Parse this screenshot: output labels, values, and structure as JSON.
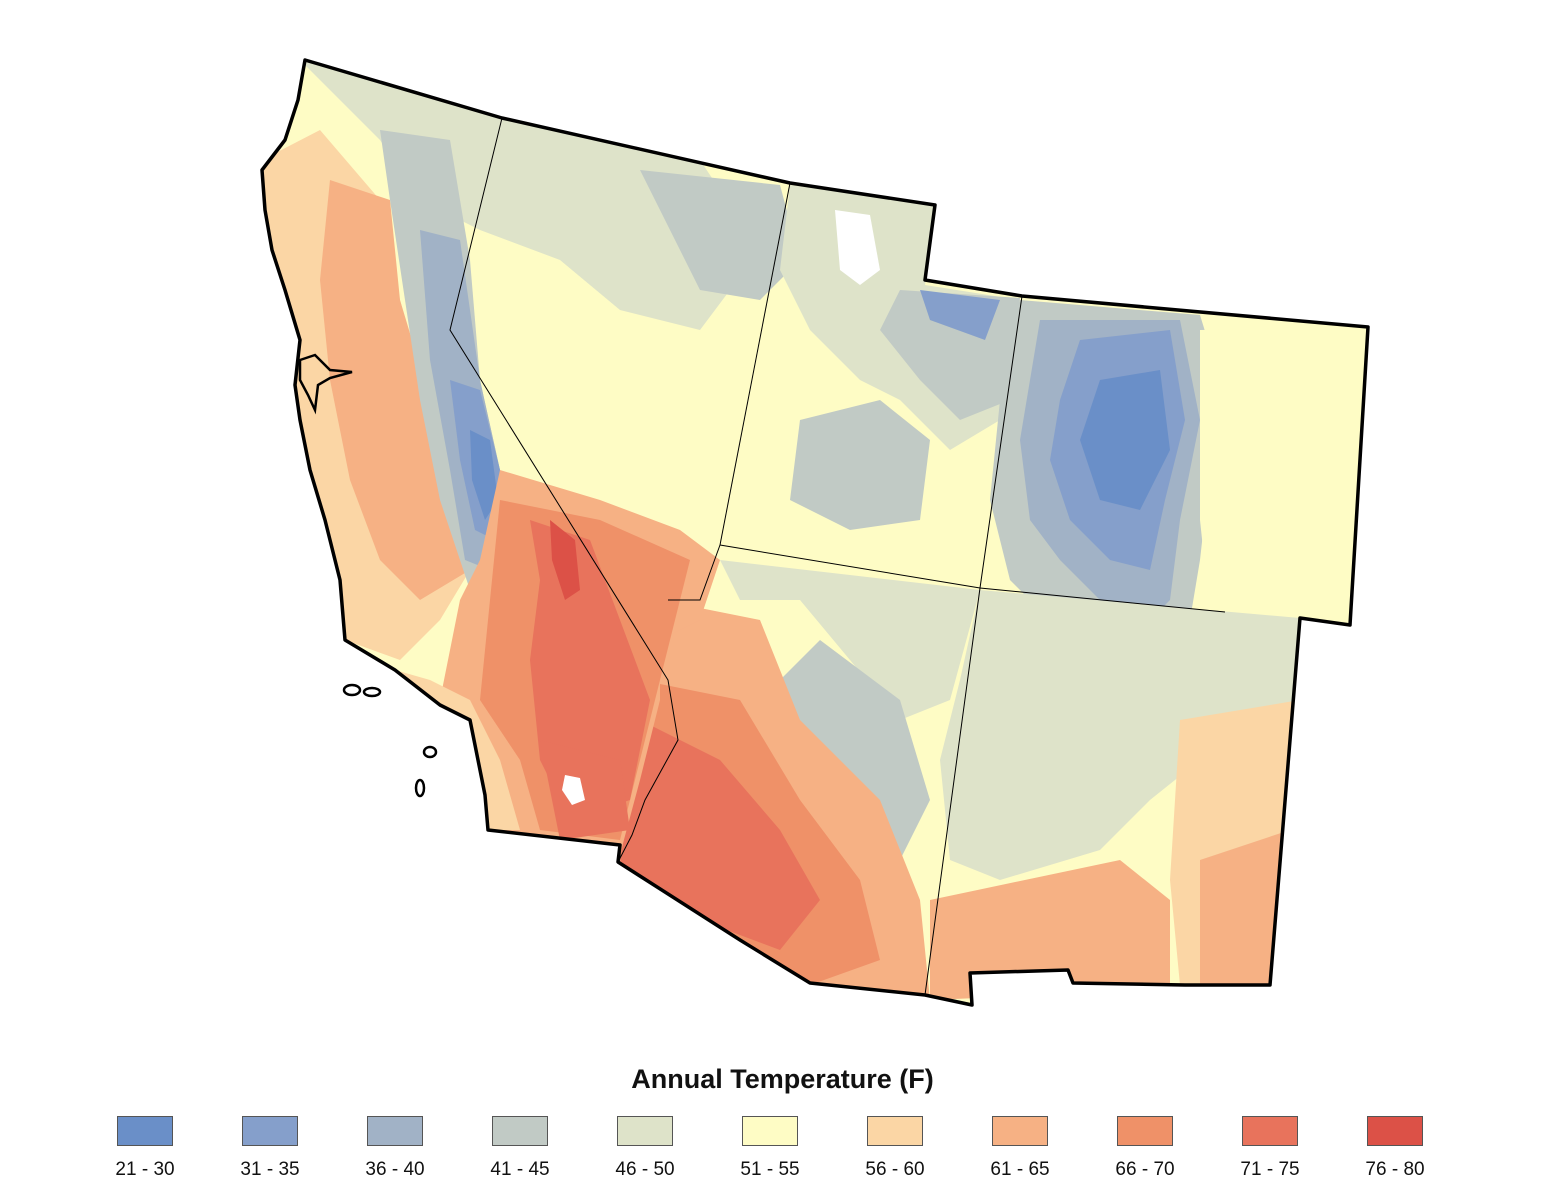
{
  "legend": {
    "title": "Annual Temperature (F)",
    "classes": [
      {
        "label": "21 - 30",
        "color": "#6a8fc8"
      },
      {
        "label": "31 - 35",
        "color": "#859fcb"
      },
      {
        "label": "36 - 40",
        "color": "#a1b2c6"
      },
      {
        "label": "41 - 45",
        "color": "#c1cac5"
      },
      {
        "label": "46 - 50",
        "color": "#dee3c9"
      },
      {
        "label": "51 - 55",
        "color": "#fefcc5"
      },
      {
        "label": "56 - 60",
        "color": "#fbd6a5"
      },
      {
        "label": "61 - 65",
        "color": "#f6b184"
      },
      {
        "label": "66 - 70",
        "color": "#ef9168"
      },
      {
        "label": "71 - 75",
        "color": "#e8735c"
      },
      {
        "label": "76 - 80",
        "color": "#dc5147"
      }
    ]
  },
  "map": {
    "region": "southwestern-united-states",
    "states": [
      "california",
      "nevada",
      "utah",
      "colorado",
      "arizona",
      "new-mexico"
    ],
    "boundary_color": "#000000"
  }
}
